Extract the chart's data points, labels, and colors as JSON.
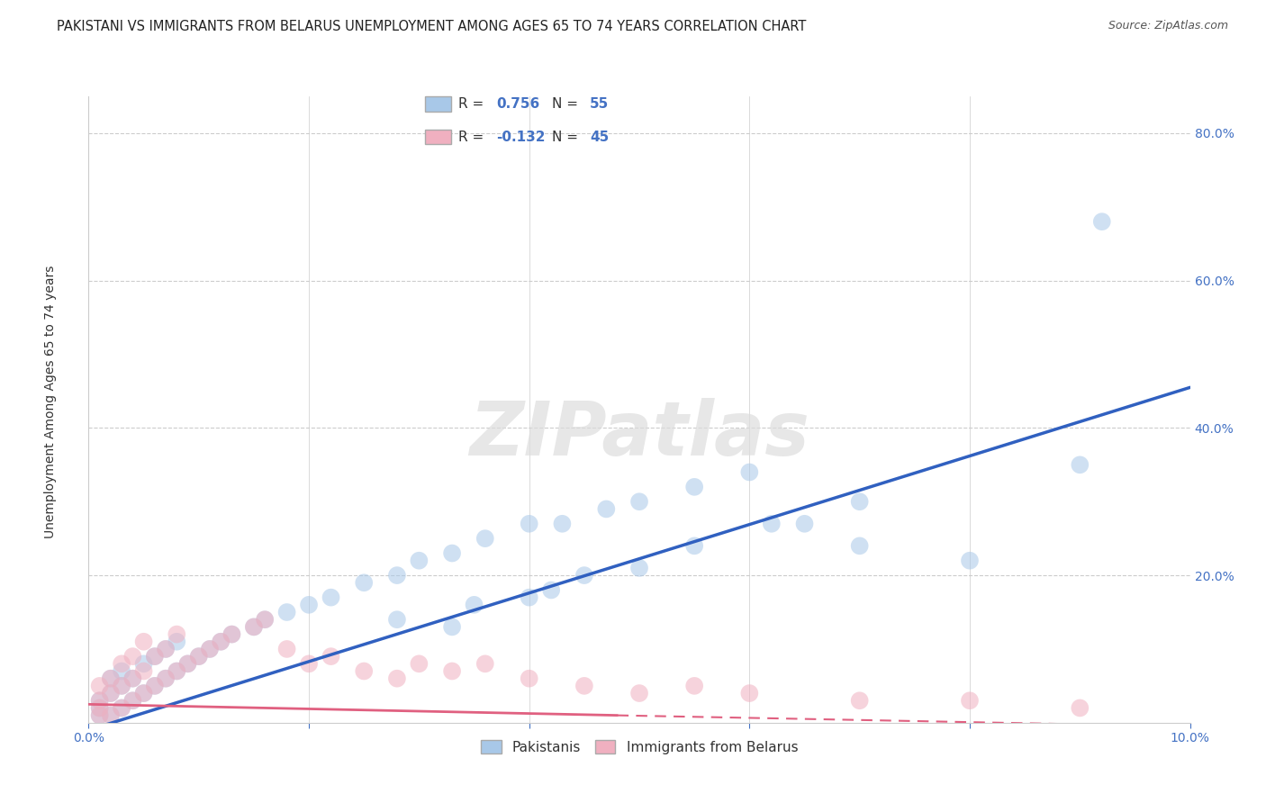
{
  "title": "PAKISTANI VS IMMIGRANTS FROM BELARUS UNEMPLOYMENT AMONG AGES 65 TO 74 YEARS CORRELATION CHART",
  "source": "Source: ZipAtlas.com",
  "ylabel": "Unemployment Among Ages 65 to 74 years",
  "legend_entry1_r": "0.756",
  "legend_entry1_n": "55",
  "legend_entry2_r": "-0.132",
  "legend_entry2_n": "45",
  "legend_label1": "Pakistanis",
  "legend_label2": "Immigrants from Belarus",
  "r1": 0.756,
  "n1": 55,
  "r2": -0.132,
  "n2": 45,
  "color_blue": "#A8C8E8",
  "color_blue_line": "#3060C0",
  "color_pink": "#F0B0C0",
  "color_pink_line": "#E06080",
  "color_text_blue": "#4472C4",
  "bg_color": "#FFFFFF",
  "grid_color": "#CCCCCC",
  "xlim": [
    0.0,
    0.1
  ],
  "ylim": [
    0.0,
    0.85
  ],
  "blue_line_x0": 0.0,
  "blue_line_y0": -0.01,
  "blue_line_x1": 0.1,
  "blue_line_y1": 0.455,
  "pink_line_solid_x0": 0.0,
  "pink_line_solid_y0": 0.025,
  "pink_line_solid_x1": 0.048,
  "pink_line_solid_y1": 0.01,
  "pink_line_dash_x0": 0.048,
  "pink_line_dash_y0": 0.01,
  "pink_line_dash_x1": 0.1,
  "pink_line_dash_y1": -0.005,
  "pakistanis_x": [
    0.001,
    0.001,
    0.001,
    0.002,
    0.002,
    0.002,
    0.003,
    0.003,
    0.003,
    0.004,
    0.004,
    0.005,
    0.005,
    0.006,
    0.006,
    0.007,
    0.007,
    0.008,
    0.008,
    0.009,
    0.01,
    0.011,
    0.012,
    0.013,
    0.015,
    0.016,
    0.018,
    0.02,
    0.022,
    0.025,
    0.028,
    0.03,
    0.033,
    0.036,
    0.04,
    0.043,
    0.047,
    0.05,
    0.055,
    0.06,
    0.065,
    0.07,
    0.04,
    0.05,
    0.028,
    0.035,
    0.042,
    0.055,
    0.062,
    0.07,
    0.08,
    0.09,
    0.033,
    0.045,
    0.092
  ],
  "pakistanis_y": [
    0.01,
    0.02,
    0.03,
    0.01,
    0.04,
    0.06,
    0.02,
    0.05,
    0.07,
    0.03,
    0.06,
    0.04,
    0.08,
    0.05,
    0.09,
    0.06,
    0.1,
    0.07,
    0.11,
    0.08,
    0.09,
    0.1,
    0.11,
    0.12,
    0.13,
    0.14,
    0.15,
    0.16,
    0.17,
    0.19,
    0.2,
    0.22,
    0.23,
    0.25,
    0.27,
    0.27,
    0.29,
    0.3,
    0.32,
    0.34,
    0.27,
    0.24,
    0.17,
    0.21,
    0.14,
    0.16,
    0.18,
    0.24,
    0.27,
    0.3,
    0.22,
    0.35,
    0.13,
    0.2,
    0.68
  ],
  "belarus_x": [
    0.001,
    0.001,
    0.001,
    0.001,
    0.002,
    0.002,
    0.002,
    0.003,
    0.003,
    0.003,
    0.004,
    0.004,
    0.004,
    0.005,
    0.005,
    0.005,
    0.006,
    0.006,
    0.007,
    0.007,
    0.008,
    0.008,
    0.009,
    0.01,
    0.011,
    0.012,
    0.013,
    0.015,
    0.016,
    0.018,
    0.02,
    0.022,
    0.025,
    0.028,
    0.03,
    0.033,
    0.036,
    0.04,
    0.045,
    0.05,
    0.055,
    0.06,
    0.07,
    0.08,
    0.09
  ],
  "belarus_y": [
    0.01,
    0.02,
    0.03,
    0.05,
    0.01,
    0.04,
    0.06,
    0.02,
    0.05,
    0.08,
    0.03,
    0.06,
    0.09,
    0.04,
    0.07,
    0.11,
    0.05,
    0.09,
    0.06,
    0.1,
    0.07,
    0.12,
    0.08,
    0.09,
    0.1,
    0.11,
    0.12,
    0.13,
    0.14,
    0.1,
    0.08,
    0.09,
    0.07,
    0.06,
    0.08,
    0.07,
    0.08,
    0.06,
    0.05,
    0.04,
    0.05,
    0.04,
    0.03,
    0.03,
    0.02
  ],
  "watermark_text": "ZIPatlas",
  "title_fontsize": 10.5,
  "tick_fontsize": 10
}
